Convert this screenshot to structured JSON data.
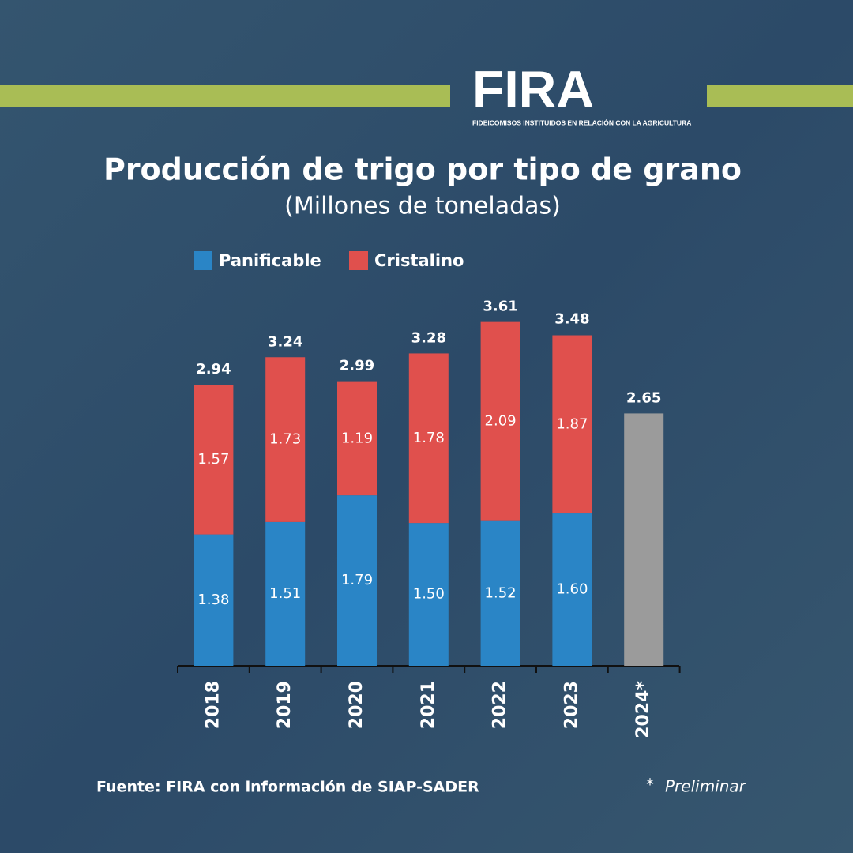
{
  "logo": {
    "name": "FIRA",
    "tagline": "FIDEICOMISOS INSTITUIDOS EN RELACIÓN CON LA AGRICULTURA"
  },
  "chart_data": {
    "type": "stacked_bar",
    "title": "Producción de trigo por tipo de grano",
    "subtitle": "(Millones de toneladas)",
    "categories": [
      "2018",
      "2019",
      "2020",
      "2021",
      "2022",
      "2023",
      "2024*"
    ],
    "series": [
      {
        "name": "Panificable",
        "color": "#2a85c6",
        "values": [
          1.38,
          1.51,
          1.79,
          1.5,
          1.52,
          1.6,
          null
        ],
        "value_labels": [
          "1.38",
          "1.51",
          "1.79",
          "1.50",
          "1.52",
          "1.60",
          null
        ]
      },
      {
        "name": "Cristalino",
        "color": "#e0504d",
        "values": [
          1.57,
          1.73,
          1.19,
          1.78,
          2.09,
          1.87,
          null
        ]
      }
    ],
    "totals": {
      "values": [
        2.94,
        3.24,
        2.99,
        3.28,
        3.61,
        3.48,
        2.65
      ],
      "color": "#9b9b9b"
    },
    "ylim": [
      0,
      4
    ],
    "source": "Fuente: FIRA con información de SIAP-SADER",
    "note_mark": "*",
    "note": "Preliminar"
  }
}
